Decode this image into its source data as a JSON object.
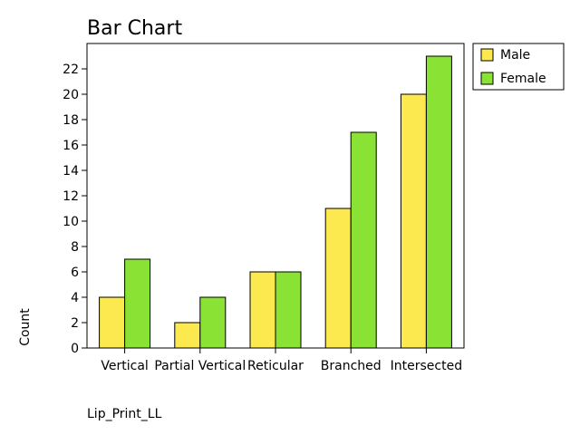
{
  "chart_data": {
    "type": "bar",
    "title": "Bar Chart",
    "xlabel": "Lip_Print_LL",
    "ylabel": "Count",
    "categories": [
      "Vertical",
      "Partial Vertical",
      "Reticular",
      "Branched",
      "Intersected"
    ],
    "series": [
      {
        "name": "Male",
        "values": [
          4,
          2,
          6,
          11,
          20
        ],
        "color": "#fce94f"
      },
      {
        "name": "Female",
        "values": [
          7,
          4,
          6,
          17,
          23
        ],
        "color": "#8ae234"
      }
    ],
    "ylim": [
      0,
      24
    ],
    "yticks": [
      0,
      2,
      4,
      6,
      8,
      10,
      12,
      14,
      16,
      18,
      20,
      22
    ],
    "grid": false,
    "legend_position": "outside-top-right"
  }
}
